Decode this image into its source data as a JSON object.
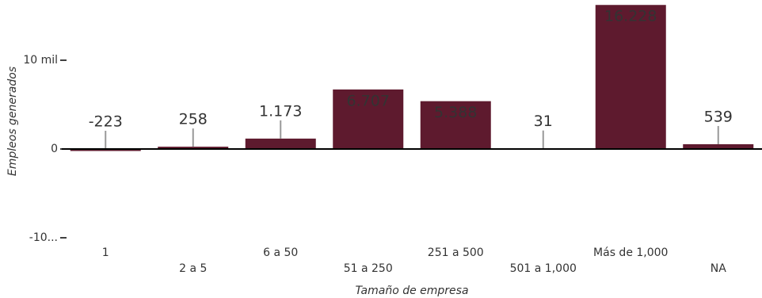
{
  "chart_data": {
    "type": "bar",
    "x_label": "Tamaño de empresa",
    "y_label": "Empleos generados",
    "categories": [
      "1",
      "2 a 5",
      "6 a 50",
      "51 a 250",
      "251 a 500",
      "501 a 1,000",
      "Más de 1,000",
      "NA"
    ],
    "values": [
      -223,
      258,
      1173,
      6707,
      5388,
      31,
      16228,
      539
    ],
    "value_labels": [
      "-223",
      "258",
      "1.173",
      "6.707",
      "5.388",
      "31",
      "16.228",
      "539"
    ],
    "color": "#5e1a2e",
    "ylim": [
      -10000,
      16500
    ],
    "yticks": [
      {
        "value": -10000,
        "label": "-10..."
      },
      0,
      {
        "value": 10000,
        "label": "10 mil"
      }
    ],
    "grid": false
  }
}
